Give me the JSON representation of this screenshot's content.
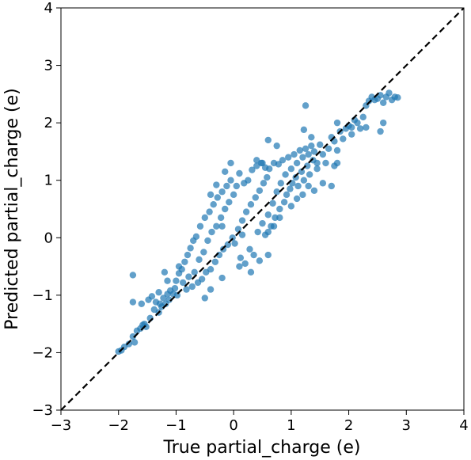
{
  "chart_data": {
    "type": "scatter",
    "title": "",
    "xlabel": "True partial_charge (e)",
    "ylabel": "Predicted partial_charge (e)",
    "xlim": [
      -3,
      4
    ],
    "ylim": [
      -3,
      4
    ],
    "xticks": [
      "−3",
      "−2",
      "−1",
      "0",
      "1",
      "2",
      "3",
      "4"
    ],
    "yticks": [
      "−3",
      "−2",
      "−1",
      "0",
      "1",
      "2",
      "3",
      "4"
    ],
    "xtick_values": [
      -3,
      -2,
      -1,
      0,
      1,
      2,
      3,
      4
    ],
    "ytick_values": [
      -3,
      -2,
      -1,
      0,
      1,
      2,
      3,
      4
    ],
    "grid": false,
    "marker_color": "#1f77b4",
    "marker_alpha": 0.7,
    "reference_line": {
      "style": "dashed",
      "color": "#000000",
      "points": [
        [
          -3,
          -3
        ],
        [
          4,
          4
        ]
      ]
    },
    "points": [
      [
        -2.0,
        -1.98
      ],
      [
        -1.95,
        -1.96
      ],
      [
        -1.9,
        -1.9
      ],
      [
        -1.82,
        -1.85
      ],
      [
        -1.75,
        -1.72
      ],
      [
        -1.72,
        -1.82
      ],
      [
        -1.68,
        -1.62
      ],
      [
        -1.62,
        -1.58
      ],
      [
        -1.58,
        -1.52
      ],
      [
        -1.52,
        -1.55
      ],
      [
        -1.45,
        -1.4
      ],
      [
        -1.75,
        -0.65
      ],
      [
        -1.75,
        -1.12
      ],
      [
        -1.6,
        -1.15
      ],
      [
        -1.48,
        -1.08
      ],
      [
        -1.42,
        -1.02
      ],
      [
        -1.35,
        -1.12
      ],
      [
        -1.3,
        -1.3
      ],
      [
        -1.25,
        -1.2
      ],
      [
        -1.22,
        -1.05
      ],
      [
        -1.18,
        -1.15
      ],
      [
        -1.15,
        -0.98
      ],
      [
        -1.12,
        -1.08
      ],
      [
        -1.1,
        -0.92
      ],
      [
        -1.05,
        -0.98
      ],
      [
        -1.02,
        -0.88
      ],
      [
        -1.0,
        -0.75
      ],
      [
        -0.98,
        -1.0
      ],
      [
        -0.95,
        -0.62
      ],
      [
        -0.9,
        -0.55
      ],
      [
        -0.88,
        -0.78
      ],
      [
        -0.85,
        -0.42
      ],
      [
        -0.82,
        -0.9
      ],
      [
        -0.8,
        -0.3
      ],
      [
        -0.78,
        -0.68
      ],
      [
        -0.75,
        -0.18
      ],
      [
        -0.72,
        -0.85
      ],
      [
        -0.7,
        -0.05
      ],
      [
        -0.68,
        -0.6
      ],
      [
        -0.65,
        0.02
      ],
      [
        -0.62,
        -0.78
      ],
      [
        -0.6,
        -0.38
      ],
      [
        -0.58,
        0.2
      ],
      [
        -0.55,
        -0.72
      ],
      [
        -0.52,
        -0.25
      ],
      [
        -0.5,
        0.35
      ],
      [
        -0.48,
        -0.6
      ],
      [
        -0.45,
        -0.05
      ],
      [
        -0.42,
        0.45
      ],
      [
        -0.4,
        -0.55
      ],
      [
        -0.38,
        0.1
      ],
      [
        -0.35,
        0.58
      ],
      [
        -0.32,
        -0.42
      ],
      [
        -0.3,
        0.2
      ],
      [
        -0.28,
        0.7
      ],
      [
        -0.25,
        -0.3
      ],
      [
        -0.22,
        0.35
      ],
      [
        -0.2,
        0.8
      ],
      [
        -0.18,
        -0.2
      ],
      [
        -0.15,
        0.5
      ],
      [
        -0.12,
        0.9
      ],
      [
        -0.1,
        -0.12
      ],
      [
        -0.08,
        0.62
      ],
      [
        -0.05,
        1.0
      ],
      [
        -0.02,
        0.0
      ],
      [
        0.0,
        0.75
      ],
      [
        0.02,
        -0.1
      ],
      [
        0.05,
        0.9
      ],
      [
        0.08,
        0.15
      ],
      [
        0.1,
        1.12
      ],
      [
        0.12,
        -0.35
      ],
      [
        0.15,
        0.3
      ],
      [
        0.18,
        0.95
      ],
      [
        0.2,
        -0.45
      ],
      [
        0.22,
        0.45
      ],
      [
        0.25,
        1.0
      ],
      [
        0.28,
        -0.2
      ],
      [
        0.3,
        0.58
      ],
      [
        0.32,
        1.18
      ],
      [
        0.35,
        -0.3
      ],
      [
        0.38,
        0.7
      ],
      [
        0.4,
        1.25
      ],
      [
        0.42,
        0.1
      ],
      [
        0.45,
        0.82
      ],
      [
        0.48,
        1.3
      ],
      [
        0.5,
        0.25
      ],
      [
        0.52,
        0.95
      ],
      [
        0.55,
        0.05
      ],
      [
        0.58,
        1.05
      ],
      [
        0.6,
        0.4
      ],
      [
        0.62,
        1.2
      ],
      [
        0.65,
        0.2
      ],
      [
        0.68,
        0.6
      ],
      [
        0.7,
        1.3
      ],
      [
        0.72,
        0.35
      ],
      [
        0.75,
        0.8
      ],
      [
        0.78,
        1.28
      ],
      [
        0.8,
        0.5
      ],
      [
        0.82,
        0.95
      ],
      [
        0.85,
        1.35
      ],
      [
        0.88,
        0.62
      ],
      [
        0.9,
        1.1
      ],
      [
        0.92,
        0.75
      ],
      [
        0.95,
        1.4
      ],
      [
        0.98,
        0.85
      ],
      [
        1.0,
        1.2
      ],
      [
        1.02,
        0.95
      ],
      [
        1.05,
        1.45
      ],
      [
        1.08,
        1.05
      ],
      [
        1.1,
        1.3
      ],
      [
        1.12,
        0.9
      ],
      [
        1.15,
        1.52
      ],
      [
        1.18,
        1.15
      ],
      [
        1.2,
        1.4
      ],
      [
        1.22,
        1.0
      ],
      [
        1.25,
        1.55
      ],
      [
        1.28,
        1.25
      ],
      [
        1.3,
        1.45
      ],
      [
        1.32,
        1.1
      ],
      [
        1.35,
        1.6
      ],
      [
        1.38,
        1.35
      ],
      [
        1.4,
        1.5
      ],
      [
        1.45,
        1.2
      ],
      [
        1.5,
        1.62
      ],
      [
        1.55,
        1.45
      ],
      [
        1.6,
        1.3
      ],
      [
        1.65,
        1.55
      ],
      [
        1.7,
        1.75
      ],
      [
        1.75,
        1.68
      ],
      [
        1.8,
        1.52
      ],
      [
        1.85,
        1.85
      ],
      [
        1.9,
        1.72
      ],
      [
        1.95,
        1.9
      ],
      [
        2.0,
        1.95
      ],
      [
        2.05,
        1.92
      ],
      [
        2.1,
        2.05
      ],
      [
        2.15,
        2.0
      ],
      [
        2.2,
        1.9
      ],
      [
        2.25,
        2.1
      ],
      [
        2.3,
        2.3
      ],
      [
        2.35,
        2.38
      ],
      [
        2.4,
        2.45
      ],
      [
        2.45,
        2.4
      ],
      [
        2.5,
        2.42
      ],
      [
        2.55,
        2.48
      ],
      [
        2.6,
        2.35
      ],
      [
        2.65,
        2.45
      ],
      [
        2.7,
        2.52
      ],
      [
        2.75,
        2.4
      ],
      [
        2.8,
        2.45
      ],
      [
        2.85,
        2.44
      ],
      [
        2.6,
        2.0
      ],
      [
        2.55,
        1.85
      ],
      [
        1.8,
        1.3
      ],
      [
        1.3,
        0.9
      ],
      [
        1.55,
        0.95
      ],
      [
        1.7,
        0.9
      ],
      [
        1.75,
        1.25
      ],
      [
        1.35,
        1.75
      ],
      [
        1.22,
        1.88
      ],
      [
        1.45,
        1.3
      ],
      [
        -0.4,
        0.75
      ],
      [
        -0.3,
        0.92
      ],
      [
        -0.15,
        1.15
      ],
      [
        -0.05,
        1.3
      ],
      [
        0.4,
        1.35
      ],
      [
        0.5,
        1.3
      ],
      [
        0.55,
        1.22
      ],
      [
        -0.5,
        -1.05
      ],
      [
        -0.4,
        -0.9
      ],
      [
        -0.2,
        -0.7
      ],
      [
        0.1,
        -0.5
      ],
      [
        0.3,
        -0.6
      ],
      [
        0.45,
        -0.4
      ],
      [
        0.6,
        -0.3
      ],
      [
        -1.2,
        -0.6
      ],
      [
        -1.15,
        -0.75
      ],
      [
        -0.95,
        -0.5
      ],
      [
        -1.3,
        -0.95
      ],
      [
        1.0,
        0.55
      ],
      [
        1.1,
        0.68
      ],
      [
        1.2,
        0.75
      ],
      [
        1.4,
        0.82
      ],
      [
        0.8,
        0.35
      ],
      [
        0.7,
        0.2
      ],
      [
        0.6,
        0.1
      ],
      [
        0.75,
        1.6
      ],
      [
        0.6,
        1.7
      ],
      [
        1.25,
        2.3
      ],
      [
        1.8,
        2.0
      ],
      [
        2.3,
        1.92
      ],
      [
        2.05,
        1.8
      ],
      [
        -1.55,
        -1.5
      ],
      [
        -1.38,
        -1.25
      ],
      [
        -1.28,
        -1.15
      ],
      [
        -0.2,
        0.2
      ],
      [
        0.15,
        0.05
      ]
    ]
  }
}
